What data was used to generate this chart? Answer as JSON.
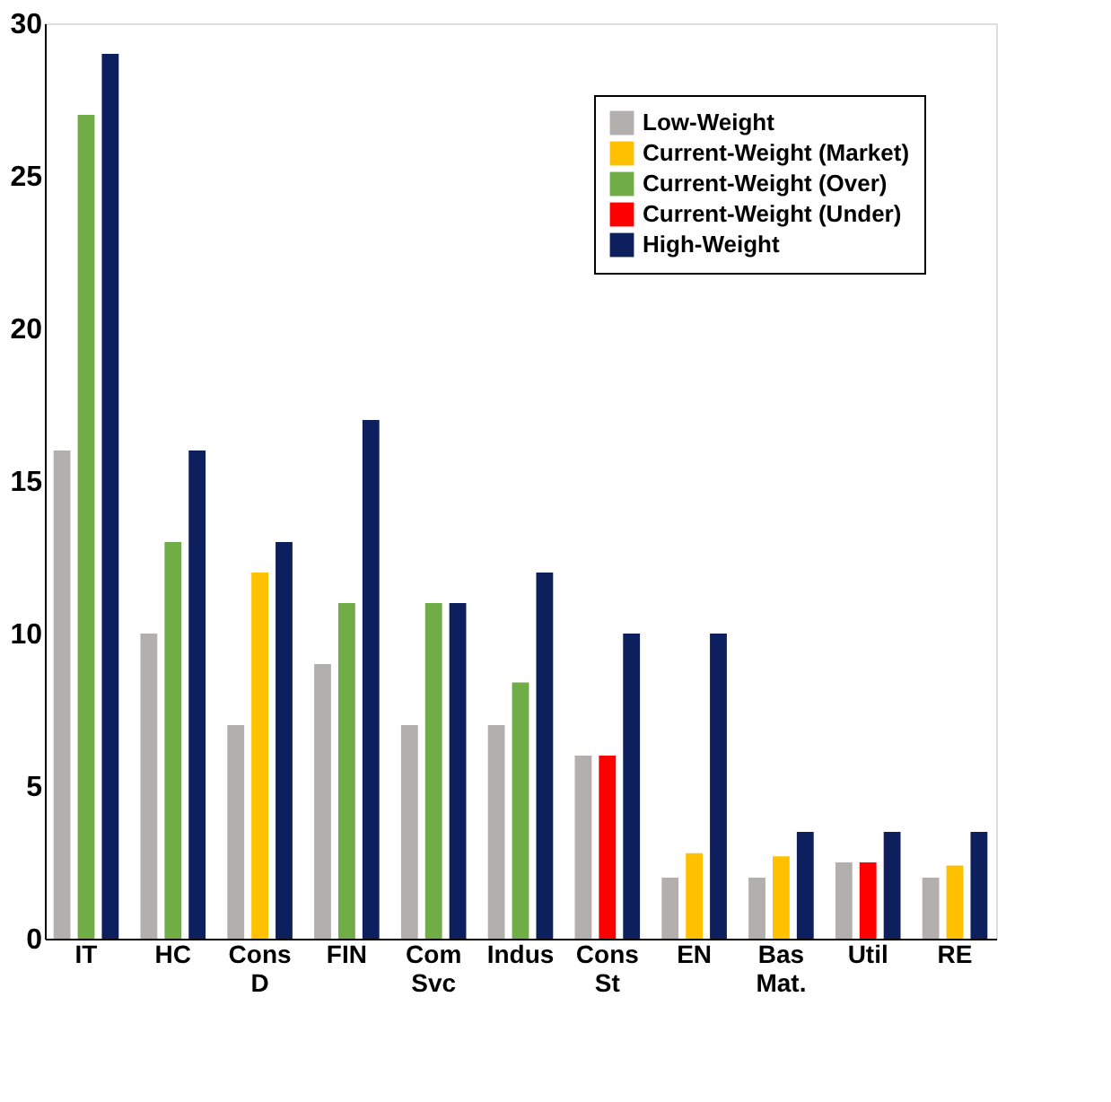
{
  "chart_data": {
    "type": "bar",
    "categories": [
      "IT",
      "HC",
      "Cons D",
      "FIN",
      "Com Svc",
      "Indus",
      "Cons St",
      "EN",
      "Bas Mat.",
      "Util",
      "RE"
    ],
    "series": [
      {
        "name": "Low-Weight",
        "color": "#b3afaf",
        "values": [
          16,
          10,
          7,
          9,
          7,
          7,
          6,
          2,
          2,
          2.5,
          2
        ]
      },
      {
        "name": "Current-Weight (Market)",
        "color": "#ffc000",
        "values": [
          null,
          null,
          12,
          null,
          null,
          null,
          null,
          2.8,
          2.7,
          null,
          2.4
        ]
      },
      {
        "name": "Current-Weight (Over)",
        "color": "#70ad47",
        "values": [
          27,
          13,
          null,
          11,
          11,
          8.4,
          null,
          null,
          null,
          null,
          null
        ]
      },
      {
        "name": "Current-Weight (Under)",
        "color": "#ff0000",
        "values": [
          null,
          null,
          null,
          null,
          null,
          null,
          6,
          null,
          null,
          2.5,
          null
        ]
      },
      {
        "name": "High-Weight",
        "color": "#0d1f5c",
        "values": [
          29,
          16,
          13,
          17,
          11,
          12,
          10,
          10,
          3.5,
          3.5,
          3.5
        ]
      }
    ],
    "ylim": [
      0,
      30
    ],
    "yticks": [
      0,
      5,
      10,
      15,
      20,
      25,
      30
    ],
    "grid": false,
    "legend": "top right"
  }
}
